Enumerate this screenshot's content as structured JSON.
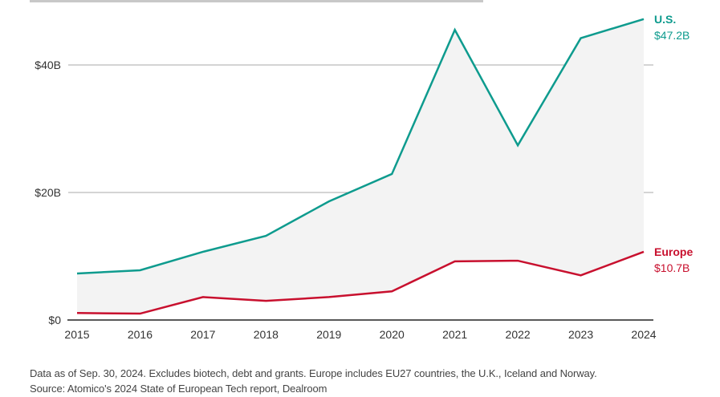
{
  "chart_data": {
    "type": "line",
    "title": "",
    "xlabel": "",
    "ylabel": "",
    "x": [
      "2015",
      "2016",
      "2017",
      "2018",
      "2019",
      "2020",
      "2021",
      "2022",
      "2023",
      "2024"
    ],
    "ylim": [
      0,
      50
    ],
    "yticks": [
      {
        "value": 0,
        "label": "$0"
      },
      {
        "value": 20,
        "label": "$20B"
      },
      {
        "value": 40,
        "label": "$40B"
      }
    ],
    "grid": true,
    "fill_between_series": true,
    "series": [
      {
        "name": "U.S.",
        "end_label": "$47.2B",
        "color": "#0e9b8e",
        "values": [
          7.3,
          7.8,
          10.7,
          13.2,
          18.6,
          22.9,
          45.5,
          27.4,
          44.2,
          47.2
        ]
      },
      {
        "name": "Europe",
        "end_label": "$10.7B",
        "color": "#c8102e",
        "values": [
          1.1,
          1.0,
          3.6,
          3.0,
          3.6,
          4.5,
          9.2,
          9.3,
          7.0,
          10.7
        ]
      }
    ],
    "fill_color": "#f3f3f3",
    "legend": "inline-right"
  },
  "footnotes": {
    "line1": "Data as of Sep. 30, 2024. Excludes biotech, debt and grants. Europe includes EU27 countries, the U.K., Iceland and Norway.",
    "line2": "Source: Atomico's 2024 State of European Tech report, Dealroom"
  }
}
